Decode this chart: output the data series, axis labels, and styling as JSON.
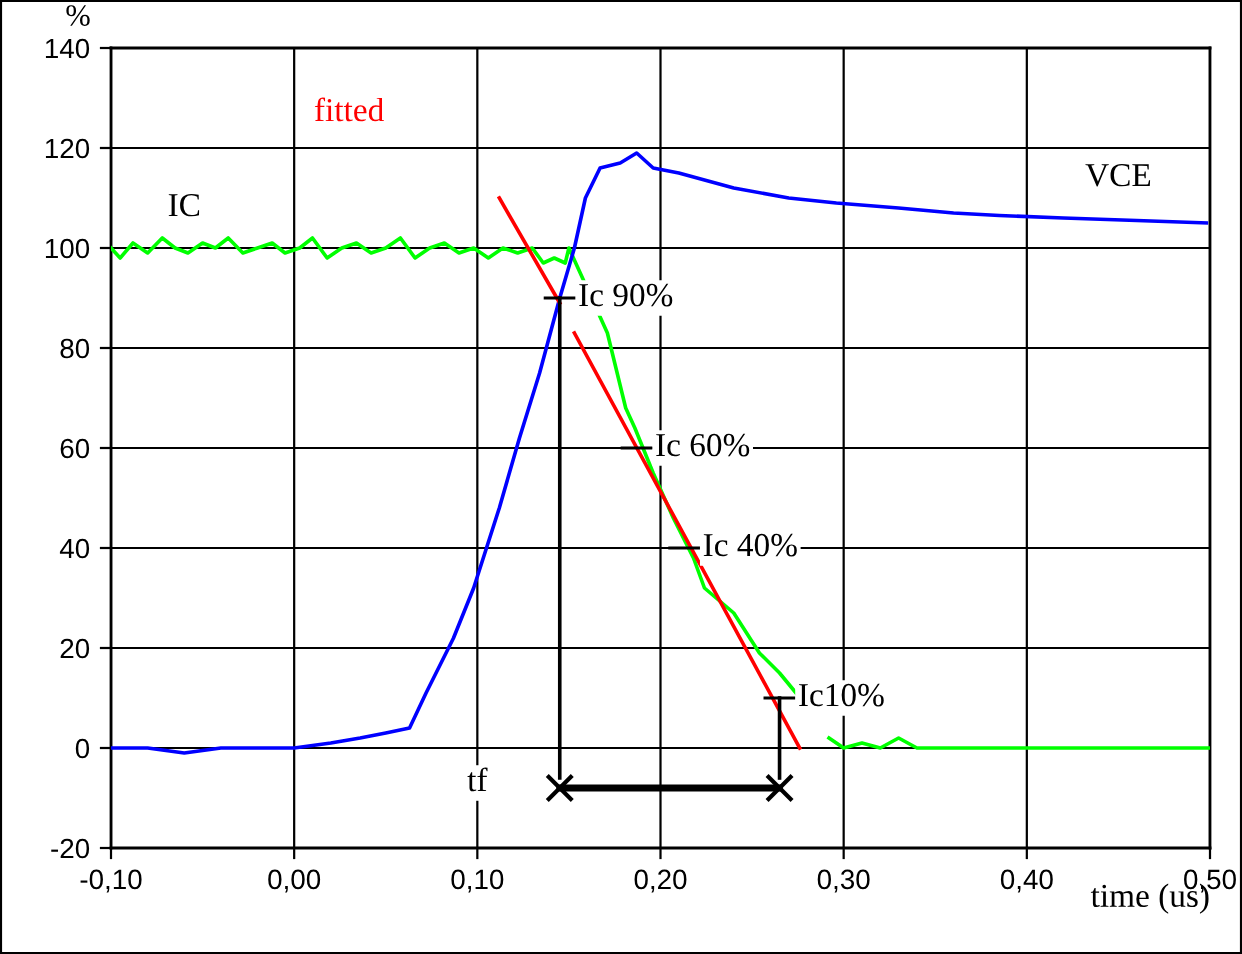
{
  "chart_data": {
    "type": "line",
    "xlabel": "time (us)",
    "ylabel": "%",
    "xlim": [
      -0.1,
      0.5
    ],
    "ylim": [
      -20,
      140
    ],
    "xticks": [
      {
        "value": -0.1,
        "label": "-0,10"
      },
      {
        "value": 0,
        "label": "0,00"
      },
      {
        "value": 0.1,
        "label": "0,10"
      },
      {
        "value": 0.2,
        "label": "0,20"
      },
      {
        "value": 0.3,
        "label": "0,30"
      },
      {
        "value": 0.4,
        "label": "0,40"
      },
      {
        "value": 0.5,
        "label": "0,50"
      }
    ],
    "yticks": [
      -20,
      0,
      20,
      40,
      60,
      80,
      100,
      120,
      140
    ],
    "grid": true,
    "marker": "none",
    "series": [
      {
        "name": "IC",
        "color": "#00ff00",
        "x": [
          -0.1,
          -0.095,
          -0.088,
          -0.08,
          -0.072,
          -0.065,
          -0.058,
          -0.05,
          -0.043,
          -0.036,
          -0.028,
          -0.02,
          -0.012,
          -0.005,
          0.003,
          0.01,
          0.018,
          0.026,
          0.034,
          0.042,
          0.05,
          0.058,
          0.066,
          0.074,
          0.082,
          0.09,
          0.098,
          0.106,
          0.114,
          0.122,
          0.13,
          0.136,
          0.142,
          0.148,
          0.15,
          0.171,
          0.181,
          0.186,
          0.196,
          0.207,
          0.218,
          0.224,
          0.24,
          0.254,
          0.265,
          0.274,
          0.285,
          0.292,
          0.3,
          0.31,
          0.32,
          0.33,
          0.34,
          0.345,
          0.5
        ],
        "values": [
          100,
          98,
          101,
          99,
          102,
          100,
          99,
          101,
          100,
          102,
          99,
          100,
          101,
          99,
          100,
          102,
          98,
          100,
          101,
          99,
          100,
          102,
          98,
          100,
          101,
          99,
          100,
          98,
          100,
          99,
          100,
          97,
          98,
          97,
          100,
          83,
          68,
          64,
          55,
          46,
          38,
          32,
          27,
          19,
          15,
          11,
          null,
          2,
          0,
          1,
          0,
          2,
          0,
          0,
          0
        ]
      },
      {
        "name": "VCE",
        "color": "#0000ff",
        "x": [
          -0.1,
          -0.08,
          -0.06,
          -0.04,
          -0.02,
          0,
          0.02,
          0.036,
          0.05,
          0.063,
          0.072,
          0.087,
          0.098,
          0.112,
          0.123,
          0.134,
          0.145,
          0.153,
          0.159,
          0.167,
          0.178,
          0.187,
          0.196,
          0.21,
          0.24,
          0.27,
          0.296,
          0.33,
          0.36,
          0.385,
          0.42,
          0.46,
          0.498
        ],
        "values": [
          0,
          0,
          -1,
          0,
          0,
          0,
          1,
          2,
          3,
          4,
          11,
          22,
          32,
          48,
          62,
          75,
          90,
          100,
          110,
          116,
          117,
          119,
          116,
          115,
          112,
          110,
          109,
          108,
          107,
          106.5,
          106,
          105.5,
          105
        ]
      },
      {
        "name": "fitted",
        "color": "#ff0000",
        "x": [
          0.112,
          0.145,
          0.149,
          0.153,
          0.276
        ],
        "values": [
          110,
          89,
          null,
          83,
          0
        ]
      },
      {
        "color": "#000000",
        "x": [
          0.145,
          0.145
        ],
        "values": [
          90,
          -6
        ]
      },
      {
        "color": "#000000",
        "x": [
          0.265,
          0.265
        ],
        "values": [
          10,
          -6
        ]
      },
      {
        "color": "#000000",
        "x": [
          0.145,
          0.265
        ],
        "values": [
          -8,
          -8
        ],
        "marker": "cross"
      }
    ],
    "annotations": [
      {
        "text": "Ic 90%",
        "x": 0.145,
        "y": 90
      },
      {
        "text": "Ic 60%",
        "x": 0.187,
        "y": 60
      },
      {
        "text": "Ic 40%",
        "x": 0.213,
        "y": 40
      },
      {
        "text": "Ic10%",
        "x": 0.265,
        "y": 10
      },
      {
        "text": "tf",
        "x": 0.1,
        "y": -7
      }
    ]
  }
}
